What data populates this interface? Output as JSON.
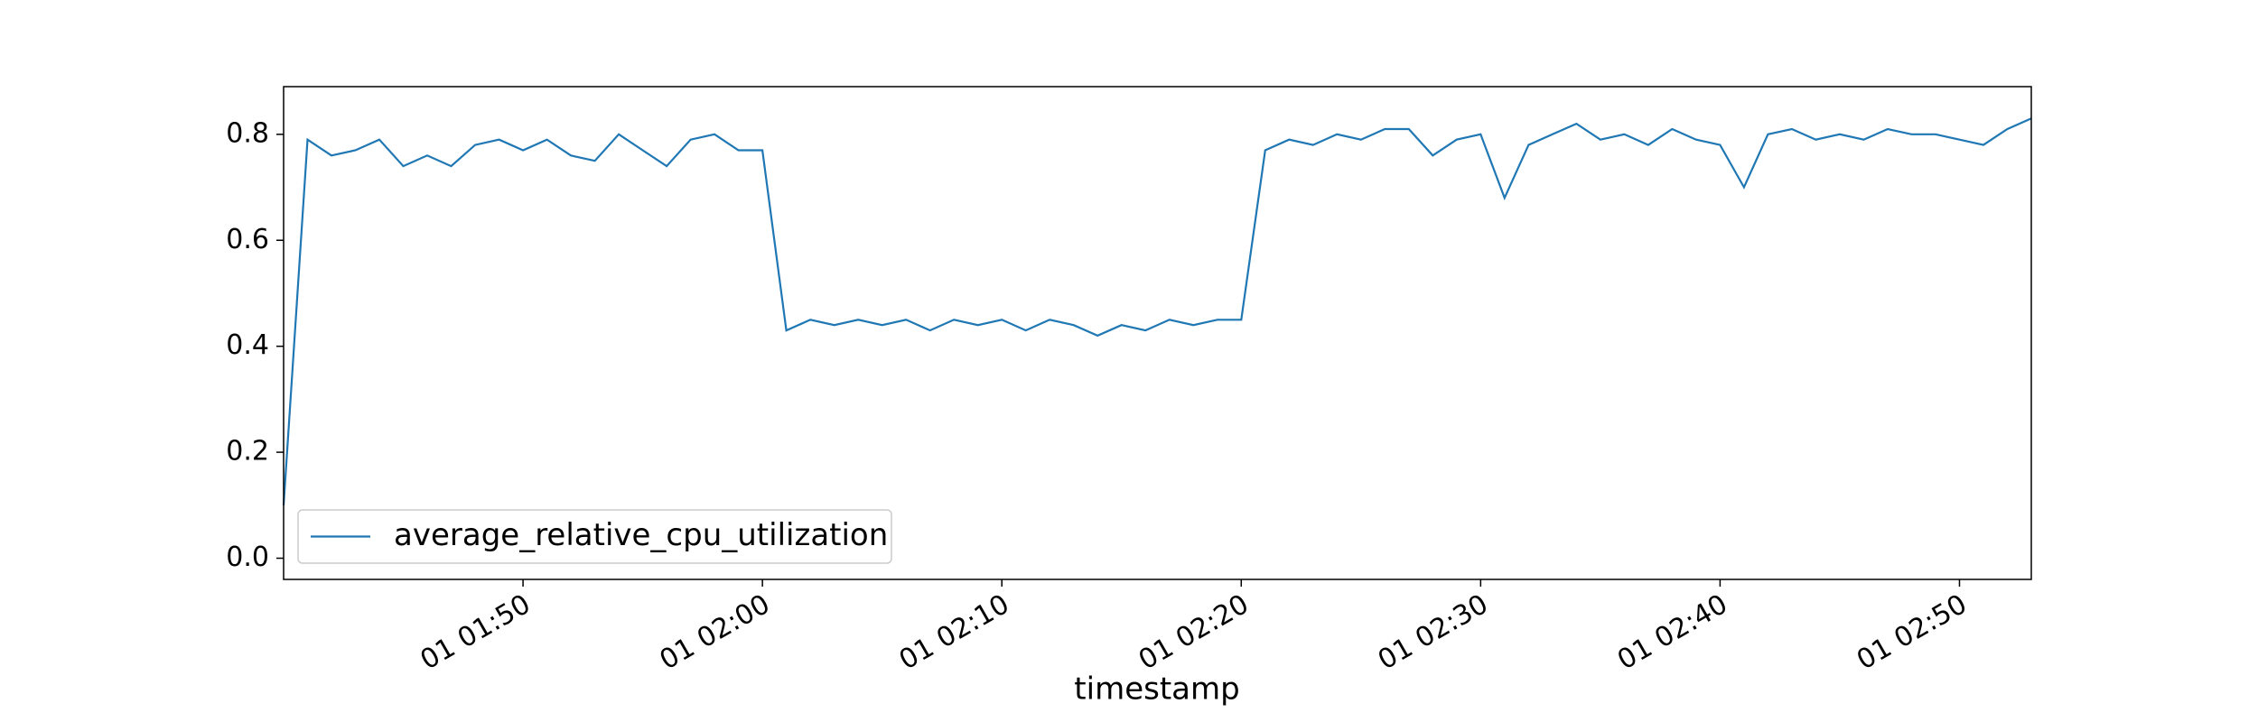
{
  "chart_data": {
    "type": "line",
    "xlabel": "timestamp",
    "x": [
      "01 01:40",
      "01 01:41",
      "01 01:42",
      "01 01:43",
      "01 01:44",
      "01 01:45",
      "01 01:46",
      "01 01:47",
      "01 01:48",
      "01 01:49",
      "01 01:50",
      "01 01:51",
      "01 01:52",
      "01 01:53",
      "01 01:54",
      "01 01:55",
      "01 01:56",
      "01 01:57",
      "01 01:58",
      "01 01:59",
      "01 02:00",
      "01 02:01",
      "01 02:02",
      "01 02:03",
      "01 02:04",
      "01 02:05",
      "01 02:06",
      "01 02:07",
      "01 02:08",
      "01 02:09",
      "01 02:10",
      "01 02:11",
      "01 02:12",
      "01 02:13",
      "01 02:14",
      "01 02:15",
      "01 02:16",
      "01 02:17",
      "01 02:18",
      "01 02:19",
      "01 02:20",
      "01 02:21",
      "01 02:22",
      "01 02:23",
      "01 02:24",
      "01 02:25",
      "01 02:26",
      "01 02:27",
      "01 02:28",
      "01 02:29",
      "01 02:30",
      "01 02:31",
      "01 02:32",
      "01 02:33",
      "01 02:34",
      "01 02:35",
      "01 02:36",
      "01 02:37",
      "01 02:38",
      "01 02:39",
      "01 02:40",
      "01 02:41",
      "01 02:42",
      "01 02:43",
      "01 02:44",
      "01 02:45",
      "01 02:46",
      "01 02:47",
      "01 02:48",
      "01 02:49",
      "01 02:50",
      "01 02:51",
      "01 02:52",
      "01 02:53"
    ],
    "series": [
      {
        "name": "average_relative_cpu_utilization",
        "color": "#1f77b4",
        "values": [
          0.1,
          0.79,
          0.76,
          0.77,
          0.79,
          0.74,
          0.76,
          0.74,
          0.78,
          0.79,
          0.77,
          0.79,
          0.76,
          0.75,
          0.8,
          0.77,
          0.74,
          0.79,
          0.8,
          0.77,
          0.77,
          0.43,
          0.45,
          0.44,
          0.45,
          0.44,
          0.45,
          0.43,
          0.45,
          0.44,
          0.45,
          0.43,
          0.45,
          0.44,
          0.42,
          0.44,
          0.43,
          0.45,
          0.44,
          0.45,
          0.45,
          0.77,
          0.79,
          0.78,
          0.8,
          0.79,
          0.81,
          0.81,
          0.76,
          0.79,
          0.8,
          0.68,
          0.78,
          0.8,
          0.82,
          0.79,
          0.8,
          0.78,
          0.81,
          0.79,
          0.78,
          0.7,
          0.8,
          0.81,
          0.79,
          0.8,
          0.79,
          0.81,
          0.8,
          0.8,
          0.79,
          0.78,
          0.81,
          0.83
        ]
      }
    ],
    "xlim": [
      "01 01:40",
      "01 02:53"
    ],
    "xticks": [
      "01 01:50",
      "01 02:00",
      "01 02:10",
      "01 02:20",
      "01 02:30",
      "01 02:40",
      "01 02:50"
    ],
    "ylim": [
      -0.04,
      0.89
    ],
    "yticks": [
      {
        "value": 0,
        "label": "0.0"
      },
      0.2,
      0.4,
      0.6,
      0.8
    ],
    "legend": "lower left"
  }
}
